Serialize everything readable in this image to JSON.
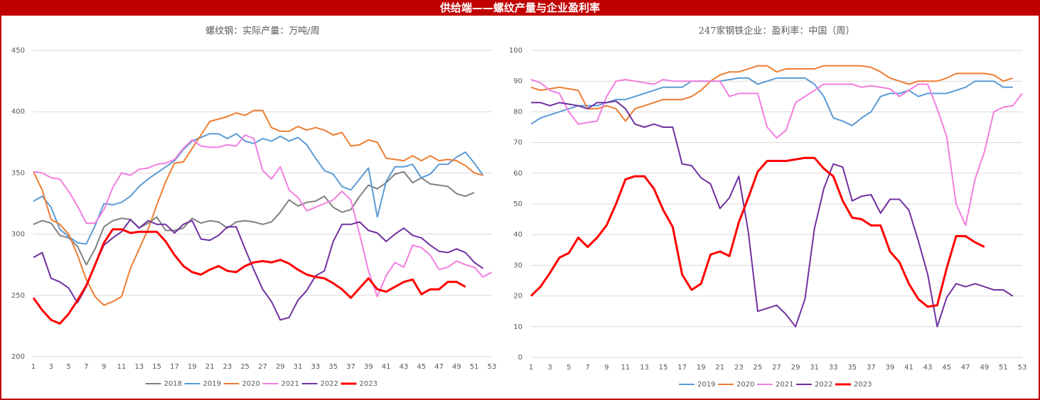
{
  "header": {
    "title": "供给端——螺纹产量与企业盈利率"
  },
  "chart_data": [
    {
      "type": "line",
      "title": "螺纹钢：实际产量：万吨/周",
      "x": [
        1,
        2,
        3,
        4,
        5,
        6,
        7,
        8,
        9,
        10,
        11,
        12,
        13,
        14,
        15,
        16,
        17,
        18,
        19,
        20,
        21,
        22,
        23,
        24,
        25,
        26,
        27,
        28,
        29,
        30,
        31,
        32,
        33,
        34,
        35,
        36,
        37,
        38,
        39,
        40,
        41,
        42,
        43,
        44,
        45,
        46,
        47,
        48,
        49,
        50,
        51,
        52,
        53
      ],
      "xlim": [
        1,
        53
      ],
      "xticks": [
        1,
        3,
        5,
        7,
        9,
        11,
        13,
        15,
        17,
        19,
        21,
        23,
        25,
        27,
        29,
        31,
        33,
        35,
        37,
        39,
        41,
        43,
        45,
        47,
        49,
        51,
        53
      ],
      "ylim": [
        200,
        450
      ],
      "yticks": [
        200,
        250,
        300,
        350,
        400,
        450
      ],
      "grid": true,
      "legend": "bottom",
      "series": [
        {
          "name": "2018",
          "color": "#808080",
          "line_width": 2,
          "values": [
            308,
            311,
            309,
            299,
            297,
            290,
            275,
            288,
            306,
            311,
            313,
            312,
            305,
            309,
            314,
            303,
            303,
            305,
            313,
            309,
            311,
            310,
            305,
            310,
            311,
            310,
            308,
            310,
            318,
            328,
            323,
            326,
            327,
            331,
            322,
            318,
            320,
            331,
            340,
            337,
            342,
            349,
            351,
            342,
            346,
            341,
            340,
            339,
            333,
            331,
            334,
            null,
            null
          ]
        },
        {
          "name": "2019",
          "color": "#5b9bd5",
          "line_width": 2,
          "values": [
            327,
            331,
            322,
            304,
            298,
            293,
            292,
            307,
            325,
            324,
            326,
            331,
            339,
            345,
            350,
            355,
            360,
            369,
            376,
            379,
            382,
            382,
            378,
            382,
            376,
            374,
            378,
            376,
            380,
            376,
            379,
            373,
            362,
            352,
            349,
            339,
            336,
            345,
            354,
            314,
            343,
            355,
            355,
            357,
            346,
            349,
            357,
            357,
            363,
            367,
            358,
            348,
            null
          ]
        },
        {
          "name": "2020",
          "color": "#ed7d31",
          "line_width": 2,
          "values": [
            351,
            336,
            312,
            308,
            300,
            283,
            263,
            249,
            242,
            245,
            249,
            272,
            288,
            304,
            324,
            343,
            358,
            359,
            370,
            381,
            392,
            394,
            396,
            399,
            397,
            401,
            401,
            387,
            384,
            384,
            388,
            385,
            387,
            385,
            381,
            383,
            372,
            373,
            377,
            375,
            362,
            361,
            360,
            364,
            360,
            364,
            360,
            361,
            360,
            356,
            350,
            348,
            null
          ]
        },
        {
          "name": "2021",
          "color": "#f27ee0",
          "line_width": 2,
          "values": [
            351,
            350,
            346,
            345,
            335,
            323,
            309,
            309,
            320,
            338,
            350,
            348,
            353,
            354,
            357,
            358,
            361,
            370,
            377,
            372,
            371,
            371,
            373,
            372,
            381,
            378,
            352,
            345,
            355,
            336,
            330,
            319,
            322,
            325,
            328,
            335,
            328,
            300,
            270,
            249,
            266,
            277,
            273,
            291,
            289,
            283,
            271,
            273,
            278,
            275,
            273,
            265,
            269
          ]
        },
        {
          "name": "2022",
          "color": "#7030a0",
          "line_width": 2,
          "values": [
            281,
            285,
            264,
            261,
            256,
            244,
            257,
            275,
            291,
            297,
            302,
            312,
            305,
            311,
            308,
            308,
            301,
            308,
            311,
            296,
            295,
            299,
            306,
            306,
            288,
            271,
            255,
            245,
            230,
            232,
            246,
            254,
            266,
            270,
            294,
            308,
            308,
            310,
            303,
            301,
            294,
            300,
            305,
            299,
            297,
            291,
            286,
            285,
            288,
            285,
            277,
            272,
            null
          ]
        },
        {
          "name": "2023",
          "color": "#ff0000",
          "line_width": 3,
          "values": [
            248,
            238,
            230,
            227,
            235,
            246,
            258,
            275,
            293,
            304,
            304,
            301,
            302,
            302,
            302,
            294,
            283,
            274,
            269,
            267,
            271,
            274,
            270,
            269,
            274,
            277,
            278,
            277,
            279,
            276,
            271,
            267,
            265,
            264,
            260,
            255,
            248,
            256,
            264,
            255,
            253,
            257,
            261,
            263,
            251,
            255,
            255,
            261,
            261,
            257,
            null,
            null,
            null
          ]
        }
      ]
    },
    {
      "type": "line",
      "title": "247家钢铁企业：盈利率：中国（周）",
      "x": [
        1,
        2,
        3,
        4,
        5,
        6,
        7,
        8,
        9,
        10,
        11,
        12,
        13,
        14,
        15,
        16,
        17,
        18,
        19,
        20,
        21,
        22,
        23,
        24,
        25,
        26,
        27,
        28,
        29,
        30,
        31,
        32,
        33,
        34,
        35,
        36,
        37,
        38,
        39,
        40,
        41,
        42,
        43,
        44,
        45,
        46,
        47,
        48,
        49,
        50,
        51,
        52,
        53
      ],
      "xlim": [
        1,
        53
      ],
      "xticks": [
        1,
        3,
        5,
        7,
        9,
        11,
        13,
        15,
        17,
        19,
        21,
        23,
        25,
        27,
        29,
        31,
        33,
        35,
        37,
        39,
        41,
        43,
        45,
        47,
        49,
        51,
        53
      ],
      "ylim": [
        0,
        100
      ],
      "yticks": [
        0,
        10,
        20,
        30,
        40,
        50,
        60,
        70,
        80,
        90,
        100
      ],
      "grid": true,
      "legend": "bottom",
      "series": [
        {
          "name": "2019",
          "color": "#5b9bd5",
          "line_width": 2,
          "values": [
            76,
            78,
            79,
            80,
            81,
            82,
            82,
            82,
            83,
            84,
            84,
            85,
            86,
            87,
            88,
            88,
            88,
            90,
            90,
            90,
            90,
            90.5,
            91,
            91,
            89,
            90,
            91,
            91,
            91,
            91,
            89,
            85,
            78,
            77,
            75.5,
            78,
            80,
            85,
            86,
            86,
            87,
            85,
            86,
            86,
            86,
            87,
            88,
            90,
            90,
            90,
            88,
            88,
            null
          ]
        },
        {
          "name": "2020",
          "color": "#ed7d31",
          "line_width": 2,
          "values": [
            88,
            87,
            87.5,
            88,
            87.5,
            87,
            81,
            81,
            82,
            81,
            77,
            81,
            82,
            83,
            84,
            84,
            84,
            85,
            87,
            90,
            92,
            93,
            93,
            94,
            95,
            95,
            93,
            94,
            94,
            94,
            94,
            95,
            95,
            95,
            95,
            95,
            94.5,
            93,
            91,
            90,
            89,
            90,
            90,
            90,
            91,
            92.5,
            92.5,
            92.5,
            92.5,
            92,
            90,
            91,
            null
          ]
        },
        {
          "name": "2021",
          "color": "#f27ee0",
          "line_width": 2,
          "values": [
            90.5,
            89.5,
            87,
            86,
            80,
            76,
            76.5,
            77,
            85,
            90,
            90.5,
            90,
            89.5,
            89,
            90.5,
            90,
            90,
            90,
            90,
            90,
            90,
            85,
            86,
            86,
            86,
            75,
            71.5,
            74,
            83,
            85,
            87,
            89,
            89,
            89,
            89,
            88,
            88.5,
            88,
            87.5,
            85,
            87,
            89,
            89,
            81,
            72,
            50,
            43,
            58,
            67,
            80,
            81.5,
            82,
            86
          ]
        },
        {
          "name": "2022",
          "color": "#7030a0",
          "line_width": 2,
          "values": [
            83,
            83,
            82,
            83,
            82.5,
            82,
            81,
            83,
            83,
            83.5,
            81,
            76,
            75,
            76,
            75,
            75,
            63,
            62.5,
            58.5,
            56.5,
            48.5,
            52,
            59,
            41,
            15,
            16,
            17,
            14,
            10,
            19,
            42,
            55,
            63,
            62,
            51,
            52.5,
            53,
            47,
            51.5,
            51.5,
            48,
            38,
            27,
            10,
            19.5,
            24,
            23,
            24,
            23,
            22,
            22,
            20,
            null
          ]
        },
        {
          "name": "2023",
          "color": "#ff0000",
          "line_width": 3,
          "values": [
            20,
            23,
            27.5,
            32.5,
            34,
            39,
            36,
            39,
            43,
            50,
            58,
            59,
            59,
            55,
            48,
            42.5,
            27,
            22,
            24,
            33.5,
            34.5,
            33,
            44,
            52,
            60.5,
            64,
            64,
            64,
            64.5,
            65,
            65,
            61.5,
            59,
            51,
            45.5,
            45,
            43,
            43,
            34.5,
            31,
            24,
            19,
            16.5,
            17,
            29,
            39.5,
            39.5,
            37.5,
            36,
            null,
            null,
            null,
            null
          ]
        }
      ]
    }
  ]
}
